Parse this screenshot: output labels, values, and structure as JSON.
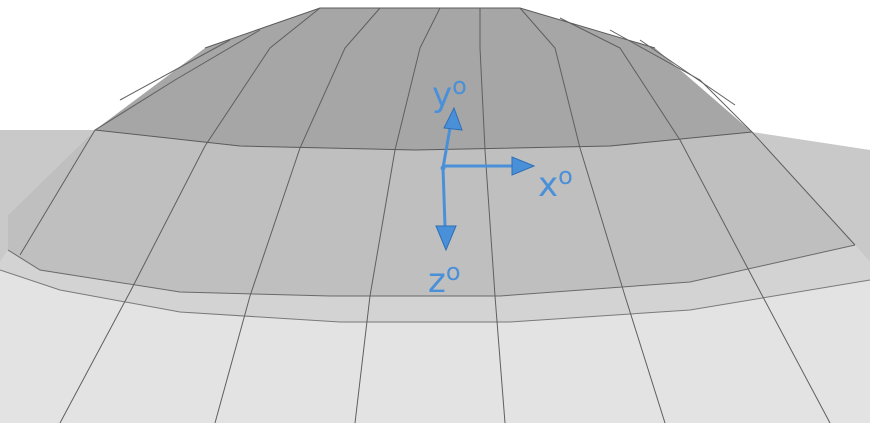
{
  "figure": {
    "axes": {
      "x": {
        "label": "x",
        "superscript": "o"
      },
      "y": {
        "label": "y",
        "superscript": "o"
      },
      "z": {
        "label": "z",
        "superscript": "o"
      }
    }
  },
  "colors": {
    "background": "#ffffff",
    "axis": "#4a90d9",
    "mesh_edge": "#3a3a3a",
    "band_top": "#a8a8a8",
    "band_upper": "#c0c0c0",
    "band_middle": "#d4d4d4",
    "band_lower": "#e2e2e2"
  }
}
